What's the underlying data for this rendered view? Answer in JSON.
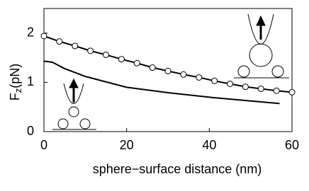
{
  "chart_data": {
    "type": "line",
    "xlabel": "sphere−surface distance (nm)",
    "ylabel": [
      "F",
      "z",
      "(pN)"
    ],
    "xlim": [
      0,
      60
    ],
    "ylim": [
      0,
      2.5
    ],
    "xticks": [
      0,
      20,
      40,
      60
    ],
    "yticks": [
      0,
      1,
      2
    ],
    "series": [
      {
        "color": "#000000",
        "markers": true,
        "x": [
          0,
          3.75,
          7.5,
          11.25,
          15,
          18.75,
          22.5,
          26.25,
          30,
          33.75,
          37.5,
          41.25,
          45,
          48.75,
          52.5,
          56.25,
          60
        ],
        "values": [
          1.94,
          1.83,
          1.74,
          1.64,
          1.56,
          1.47,
          1.39,
          1.3,
          1.23,
          1.16,
          1.1,
          1.03,
          0.97,
          0.91,
          0.87,
          0.83,
          0.8
        ]
      },
      {
        "color": "#000000",
        "markers": false,
        "x": [
          0,
          2,
          5,
          10,
          20,
          30,
          41,
          57
        ],
        "values": [
          1.43,
          1.41,
          1.28,
          1.12,
          0.9,
          0.79,
          0.69,
          0.57
        ]
      }
    ]
  }
}
